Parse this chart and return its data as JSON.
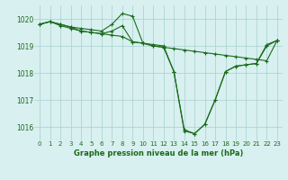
{
  "xlabel": "Graphe pression niveau de la mer (hPa)",
  "x": [
    0,
    1,
    2,
    3,
    4,
    5,
    6,
    7,
    8,
    9,
    10,
    11,
    12,
    13,
    14,
    15,
    16,
    17,
    18,
    19,
    20,
    21,
    22,
    23
  ],
  "series": [
    [
      1019.8,
      1019.9,
      1019.75,
      1019.65,
      1019.55,
      1019.5,
      1019.45,
      1019.4,
      1019.35,
      1019.15,
      1019.1,
      1019.0,
      1018.95,
      1018.9,
      1018.85,
      1018.8,
      1018.75,
      1018.7,
      1018.65,
      1018.6,
      1018.55,
      1018.5,
      1018.45,
      1019.2
    ],
    [
      1019.8,
      1019.9,
      1019.8,
      1019.7,
      1019.55,
      1019.5,
      1019.45,
      1019.55,
      1019.75,
      1019.15,
      1019.1,
      1019.0,
      1018.95,
      1018.05,
      1015.85,
      1015.75,
      1016.1,
      1017.0,
      1018.05,
      1018.25,
      1018.3,
      1018.35,
      1019.0,
      1019.2
    ],
    [
      1019.8,
      1019.9,
      1019.8,
      1019.7,
      1019.65,
      1019.6,
      1019.55,
      1019.8,
      1020.2,
      1020.1,
      1019.1,
      1019.05,
      1019.0,
      1018.05,
      1015.9,
      1015.75,
      1016.1,
      1017.0,
      1018.05,
      1018.25,
      1018.3,
      1018.35,
      1019.05,
      1019.2
    ]
  ],
  "line_color": "#1a6b1a",
  "marker": "+",
  "bg_color": "#d8f0f0",
  "grid_color": "#a8cece",
  "tick_label_color": "#1a6b1a",
  "xlabel_color": "#1a6b1a",
  "ylim": [
    1015.5,
    1020.5
  ],
  "yticks": [
    1016,
    1017,
    1018,
    1019,
    1020
  ],
  "xticks": [
    0,
    1,
    2,
    3,
    4,
    5,
    6,
    7,
    8,
    9,
    10,
    11,
    12,
    13,
    14,
    15,
    16,
    17,
    18,
    19,
    20,
    21,
    22,
    23
  ]
}
